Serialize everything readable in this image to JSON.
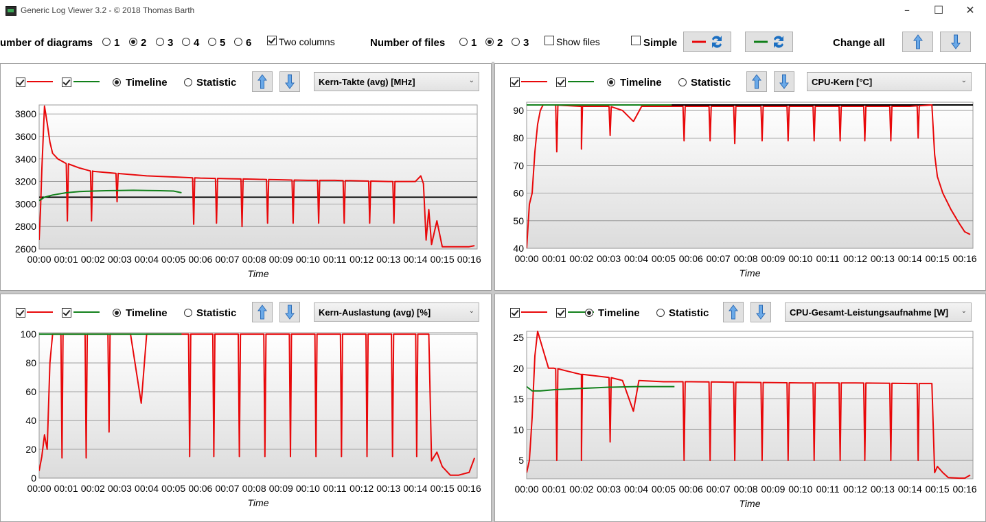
{
  "window": {
    "title": "Generic Log Viewer 3.2 - © 2018 Thomas Barth"
  },
  "toolbar": {
    "num_diagrams_label": "umber of diagrams",
    "diagram_options": [
      "1",
      "2",
      "3",
      "4",
      "5",
      "6"
    ],
    "diagram_selected": "2",
    "two_columns_label": "Two columns",
    "two_columns_checked": true,
    "num_files_label": "Number of files",
    "file_options": [
      "1",
      "2",
      "3"
    ],
    "file_selected": "2",
    "show_files_label": "Show files",
    "simple_label": "Simple",
    "change_all_label": "Change all"
  },
  "colors": {
    "red": "#e8080a",
    "green": "#11801a",
    "black": "#000000"
  },
  "panels": [
    {
      "timeline_label": "Timeline",
      "statistic_label": "Statistic",
      "metric": "Kern-Takte (avg) [MHz]",
      "xlabel": "Time"
    },
    {
      "timeline_label": "Timeline",
      "statistic_label": "Statistic",
      "metric": "CPU-Kern [°C]",
      "xlabel": "Time"
    },
    {
      "timeline_label": "Timeline",
      "statistic_label": "Statistic",
      "metric": "Kern-Auslastung (avg) [%]",
      "xlabel": "Time"
    },
    {
      "timeline_label": "Timeline",
      "statistic_label": "Statistic",
      "metric": "CPU-Gesamt-Leistungsaufnahme [W]",
      "xlabel": "Time"
    }
  ],
  "chart_data": [
    {
      "type": "line",
      "xlabel": "Time",
      "ylabel": "",
      "xlim": [
        0,
        16.3
      ],
      "ylim": [
        2600,
        3880
      ],
      "yticks": [
        2600,
        2800,
        3000,
        3200,
        3400,
        3600,
        3800
      ],
      "xticks": [
        "00:00",
        "00:01",
        "00:02",
        "00:03",
        "00:04",
        "00:05",
        "00:06",
        "00:07",
        "00:08",
        "00:09",
        "00:10",
        "00:11",
        "00:12",
        "00:13",
        "00:14",
        "00:15",
        "00:16"
      ],
      "xtick_labels_joined": "00:0000:0100:0200:0300:0400:0500:0600:0700:0800:0900:1000:1100:1200:1300:1400:1500:16",
      "series": [
        {
          "color": "red",
          "x": [
            0,
            0.05,
            0.1,
            0.2,
            0.3,
            0.4,
            0.5,
            0.7,
            1.0,
            1.5,
            2.0,
            3.0,
            4.0,
            5.0,
            6.0,
            7.0,
            8.0,
            9.0,
            10.0,
            11.0,
            12.0,
            13.0,
            14.0,
            14.2,
            14.3,
            14.4,
            14.5,
            14.6,
            14.8,
            15.0,
            15.5,
            16.0,
            16.2
          ],
          "y": [
            2680,
            2950,
            3300,
            3870,
            3720,
            3550,
            3450,
            3400,
            3360,
            3320,
            3290,
            3270,
            3250,
            3240,
            3230,
            3225,
            3220,
            3215,
            3210,
            3210,
            3205,
            3200,
            3200,
            3250,
            3180,
            2680,
            2950,
            2640,
            2850,
            2620,
            2620,
            2620,
            2630
          ],
          "dips": [
            [
              1.05,
              2850
            ],
            [
              1.95,
              2850
            ],
            [
              2.9,
              3020
            ],
            [
              5.75,
              2820
            ],
            [
              6.6,
              2830
            ],
            [
              7.55,
              2800
            ],
            [
              8.5,
              2830
            ],
            [
              9.45,
              2830
            ],
            [
              10.4,
              2830
            ],
            [
              11.35,
              2830
            ],
            [
              12.3,
              2830
            ],
            [
              13.2,
              2830
            ]
          ]
        },
        {
          "color": "green",
          "x": [
            0,
            0.2,
            0.5,
            1.0,
            1.5,
            2.0,
            2.5,
            3.0,
            3.5,
            4.0,
            4.5,
            5.0,
            5.3
          ],
          "y": [
            3030,
            3060,
            3080,
            3100,
            3110,
            3115,
            3118,
            3120,
            3122,
            3120,
            3118,
            3115,
            3100
          ]
        },
        {
          "color": "black",
          "x": [
            0,
            16.3
          ],
          "y": [
            3060,
            3060
          ]
        }
      ]
    },
    {
      "type": "line",
      "xlabel": "Time",
      "ylabel": "",
      "xlim": [
        0,
        16.3
      ],
      "ylim": [
        40,
        93
      ],
      "yticks": [
        40,
        50,
        60,
        70,
        80,
        90
      ],
      "xticks": [
        "00:00",
        "00:01",
        "00:02",
        "00:03",
        "00:04",
        "00:05",
        "00:06",
        "00:07",
        "00:08",
        "00:09",
        "00:10",
        "00:11",
        "00:12",
        "00:13",
        "00:14",
        "00:15",
        "00:16"
      ],
      "xtick_labels_joined": "00:00 00:01 00:02 00:03 00:04 00:05 00:06 00:07 00:08 00:09 00:10 00:11 00:12 00:13 00:14 00:15 00:16",
      "series": [
        {
          "color": "red",
          "x": [
            0,
            0.1,
            0.2,
            0.3,
            0.4,
            0.5,
            0.6,
            0.8,
            1.0,
            2.0,
            3.0,
            3.5,
            3.9,
            4.2,
            5.0,
            6.0,
            8.0,
            10.0,
            12.0,
            14.0,
            14.8,
            14.9,
            15.0,
            15.2,
            15.5,
            15.8,
            16.0,
            16.2
          ],
          "y": [
            40,
            56,
            60,
            75,
            85,
            90,
            92,
            92,
            92,
            91.5,
            91.5,
            90,
            86,
            91.5,
            91.5,
            91.5,
            91.5,
            91.5,
            91.5,
            91.5,
            92,
            74,
            66,
            60,
            54,
            49,
            46,
            45
          ],
          "dips": [
            [
              1.1,
              75
            ],
            [
              2.0,
              76
            ],
            [
              3.05,
              81
            ],
            [
              5.75,
              79
            ],
            [
              6.7,
              79
            ],
            [
              7.6,
              78
            ],
            [
              8.6,
              79
            ],
            [
              9.55,
              79
            ],
            [
              10.5,
              79
            ],
            [
              11.45,
              79
            ],
            [
              12.35,
              79
            ],
            [
              13.3,
              79
            ],
            [
              14.3,
              80
            ]
          ]
        },
        {
          "color": "green",
          "x": [
            0,
            5.3
          ],
          "y": [
            92,
            92
          ]
        },
        {
          "color": "black",
          "x": [
            0,
            16.3
          ],
          "y": [
            92,
            92
          ]
        }
      ]
    },
    {
      "type": "line",
      "xlabel": "Time",
      "ylabel": "",
      "xlim": [
        0,
        16.3
      ],
      "ylim": [
        0,
        101
      ],
      "yticks": [
        0,
        20,
        40,
        60,
        80,
        100
      ],
      "xticks": [
        "00:00",
        "00:01",
        "00:02",
        "00:03",
        "00:04",
        "00:05",
        "00:06",
        "00:07",
        "00:08",
        "00:09",
        "00:10",
        "00:11",
        "00:12",
        "00:13",
        "00:14",
        "00:15",
        "00:16"
      ],
      "xtick_labels_joined": "00:0000:0100:0200:0300:0400:0500:0600:0700:0800:0900:1000:1100:1200:1300:1400:1500:16",
      "series": [
        {
          "color": "red",
          "x": [
            0,
            0.1,
            0.2,
            0.3,
            0.4,
            0.5,
            1.0,
            2.0,
            3.0,
            3.4,
            3.8,
            4.0,
            5.0,
            6.0,
            8.0,
            10.0,
            12.0,
            14.0,
            14.5,
            14.6,
            14.8,
            15.0,
            15.3,
            15.6,
            16.0,
            16.2
          ],
          "y": [
            5,
            15,
            30,
            20,
            80,
            100,
            100,
            100,
            100,
            100,
            52,
            100,
            100,
            100,
            100,
            100,
            100,
            100,
            100,
            12,
            18,
            8,
            2,
            2,
            4,
            14
          ],
          "dips": [
            [
              0.85,
              14
            ],
            [
              1.75,
              14
            ],
            [
              2.6,
              32
            ],
            [
              5.6,
              15
            ],
            [
              6.5,
              15
            ],
            [
              7.45,
              15
            ],
            [
              8.4,
              15
            ],
            [
              9.35,
              15
            ],
            [
              10.3,
              15
            ],
            [
              11.25,
              15
            ],
            [
              12.2,
              15
            ],
            [
              13.15,
              15
            ],
            [
              14.05,
              15
            ]
          ]
        },
        {
          "color": "green",
          "x": [
            0,
            5.3
          ],
          "y": [
            100,
            100
          ]
        }
      ]
    },
    {
      "type": "line",
      "xlabel": "Time",
      "ylabel": "",
      "xlim": [
        0,
        16.3
      ],
      "ylim": [
        2,
        26
      ],
      "yticks": [
        5,
        10,
        15,
        20,
        25
      ],
      "xticks": [
        "00:00",
        "00:01",
        "00:02",
        "00:03",
        "00:04",
        "00:05",
        "00:06",
        "00:07",
        "00:08",
        "00:09",
        "00:10",
        "00:11",
        "00:12",
        "00:13",
        "00:14",
        "00:15",
        "00:16"
      ],
      "xtick_labels_joined": "00:00 00:01 00:02 00:03 00:04 00:05 00:06 00:07 00:08 00:09 00:10 00:11 00:12 00:13 00:14 00:15 00:16",
      "series": [
        {
          "color": "red",
          "x": [
            0,
            0.1,
            0.2,
            0.3,
            0.4,
            0.6,
            0.8,
            1.0,
            1.5,
            2.0,
            3.0,
            3.5,
            3.9,
            4.1,
            5.0,
            6.0,
            8.0,
            10.0,
            12.0,
            14.0,
            14.8,
            14.9,
            15.0,
            15.2,
            15.4,
            15.8,
            16.0,
            16.2
          ],
          "y": [
            3,
            5,
            12,
            22,
            26,
            23,
            20,
            20,
            19.5,
            19,
            18.5,
            18,
            13,
            18,
            17.8,
            17.8,
            17.7,
            17.6,
            17.6,
            17.5,
            17.5,
            3,
            4,
            3,
            2.2,
            2.1,
            2.1,
            2.6
          ],
          "dips": [
            [
              1.1,
              5
            ],
            [
              2.0,
              5
            ],
            [
              3.05,
              8
            ],
            [
              5.75,
              5
            ],
            [
              6.7,
              5
            ],
            [
              7.6,
              5
            ],
            [
              8.6,
              5
            ],
            [
              9.55,
              5
            ],
            [
              10.5,
              5
            ],
            [
              11.45,
              5
            ],
            [
              12.35,
              5
            ],
            [
              13.3,
              5
            ],
            [
              14.3,
              5
            ]
          ]
        },
        {
          "color": "green",
          "x": [
            0,
            0.2,
            0.5,
            1,
            2,
            3,
            4,
            5,
            5.4
          ],
          "y": [
            17,
            16.3,
            16.3,
            16.5,
            16.7,
            16.9,
            17,
            17,
            17
          ]
        }
      ]
    }
  ]
}
